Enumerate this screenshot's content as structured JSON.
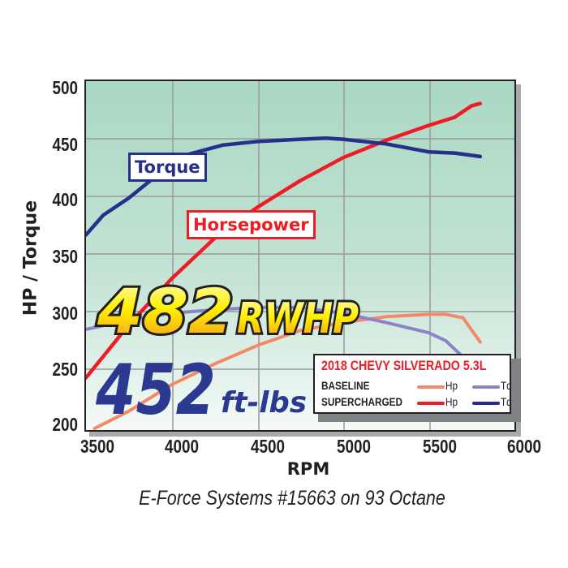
{
  "chart_data": {
    "type": "line",
    "title": "2018 CHEVY SILVERADO 5.3L",
    "subtitle": "E-Force Systems #15663 on 93 Octane",
    "xlabel": "RPM",
    "ylabel": "HP / Torque",
    "xlim": [
      3500,
      6000
    ],
    "ylim": [
      200,
      500
    ],
    "xticks": [
      3500,
      4000,
      4500,
      5000,
      5500,
      6000
    ],
    "yticks": [
      200,
      250,
      300,
      350,
      400,
      450,
      500
    ],
    "grid": true,
    "legend_position": "lower right",
    "series": [
      {
        "name": "Supercharged Hp",
        "color": "#ee1c25",
        "x": [
          3500,
          3750,
          4000,
          4250,
          4500,
          4750,
          5000,
          5250,
          5500,
          5650,
          5750,
          5800
        ],
        "values": [
          244,
          290,
          330,
          365,
          392,
          415,
          435,
          450,
          463,
          470,
          480,
          482
        ]
      },
      {
        "name": "Supercharged Tq",
        "color": "#262f8c",
        "x": [
          3500,
          3600,
          3750,
          3900,
          4100,
          4300,
          4500,
          4750,
          4900,
          5000,
          5250,
          5500,
          5650,
          5800
        ],
        "values": [
          368,
          385,
          400,
          418,
          438,
          446,
          449,
          451,
          452,
          451,
          447,
          440,
          439,
          436
        ]
      },
      {
        "name": "Baseline Hp",
        "color": "#f58967",
        "x": [
          3550,
          3750,
          4000,
          4250,
          4500,
          4750,
          5000,
          5250,
          5500,
          5600,
          5700,
          5800
        ],
        "values": [
          200,
          215,
          238,
          256,
          272,
          285,
          292,
          297,
          299,
          299,
          296,
          275
        ]
      },
      {
        "name": "Baseline Tq",
        "color": "#8b84c7",
        "x": [
          3500,
          3750,
          4000,
          4250,
          4500,
          4750,
          5000,
          5250,
          5500,
          5600,
          5700
        ],
        "values": [
          286,
          294,
          300,
          303,
          305,
          305,
          300,
          292,
          283,
          276,
          262
        ]
      }
    ],
    "annotations": [
      "Torque",
      "Horsepower",
      "482 RWHP",
      "452 ft-lbs"
    ]
  },
  "axis": {
    "yticks": [
      "500",
      "450",
      "400",
      "350",
      "300",
      "250",
      "200"
    ],
    "xticks": [
      "3500",
      "4000",
      "4500",
      "5000",
      "5500",
      "6000"
    ],
    "xlabel": "RPM",
    "ylabel": "HP / Torque"
  },
  "labels": {
    "torque": "Torque",
    "horsepower": "Horsepower",
    "peak_hp_value": "482",
    "peak_hp_unit": "RWHP",
    "peak_tq_value": "452",
    "peak_tq_unit": "ft-lbs"
  },
  "legend": {
    "title": "2018 CHEVY SILVERADO 5.3L",
    "rows": [
      {
        "name": "BASELINE",
        "hp": "Hp",
        "tq": "Tq",
        "hp_color": "#f58967",
        "tq_color": "#8b84c7"
      },
      {
        "name": "SUPERCHARGED",
        "hp": "Hp",
        "tq": "Tq",
        "hp_color": "#ee1c25",
        "tq_color": "#262f8c"
      }
    ]
  },
  "caption": "E-Force Systems #15663 on 93 Octane"
}
